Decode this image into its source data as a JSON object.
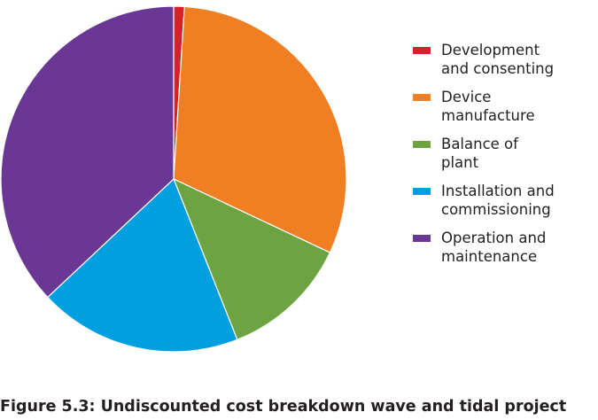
{
  "caption": "Figure 5.3: Undiscounted cost breakdown wave and tidal project",
  "chart_data": {
    "type": "pie",
    "title": "",
    "legend": "right",
    "slices": [
      {
        "label": "Development\nand consenting",
        "value": 1,
        "color": "#d1232a"
      },
      {
        "label": "Device\nmanufacture",
        "value": 31,
        "color": "#f07f23"
      },
      {
        "label": "Balance of\nplant",
        "value": 12,
        "color": "#6ea342"
      },
      {
        "label": "Installation and\ncommissioning",
        "value": 19,
        "color": "#00a0e0"
      },
      {
        "label": "Operation and\nmaintenance",
        "value": 37,
        "color": "#6a3894"
      }
    ]
  }
}
